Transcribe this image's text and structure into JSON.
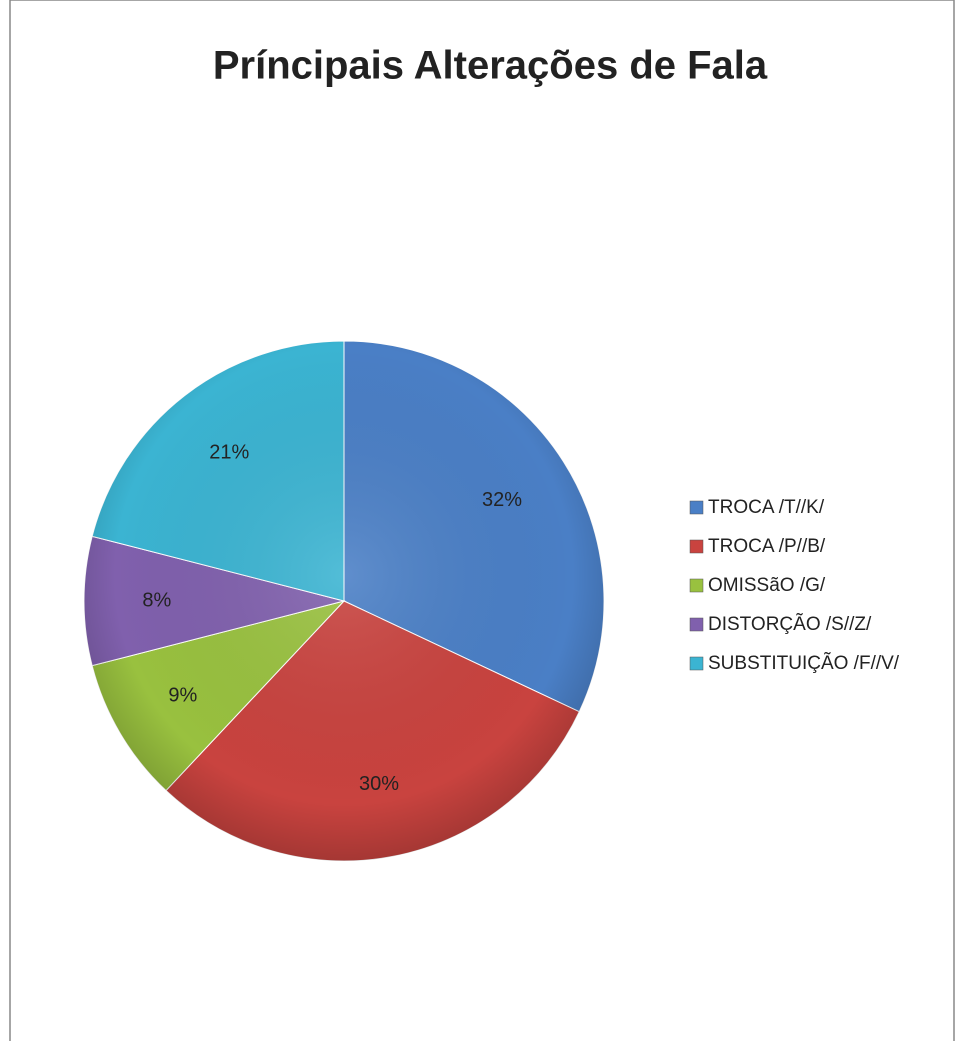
{
  "chart_data": {
    "type": "pie",
    "title": "Príncipais Alterações de Fala",
    "categories": [
      "TROCA /T//K/",
      "TROCA /P//B/",
      "OMISSãO /G/",
      "DISTORÇÃO /S//Z/",
      "SUBSTITUIÇÃO /F//V/"
    ],
    "values": [
      32,
      30,
      9,
      8,
      21
    ],
    "value_labels": [
      "32%",
      "30%",
      "9%",
      "8%",
      "21%"
    ],
    "colors": [
      "#4a7fc6",
      "#c9433f",
      "#99c13f",
      "#8060ad",
      "#3bb4d2"
    ],
    "legend": "right"
  }
}
